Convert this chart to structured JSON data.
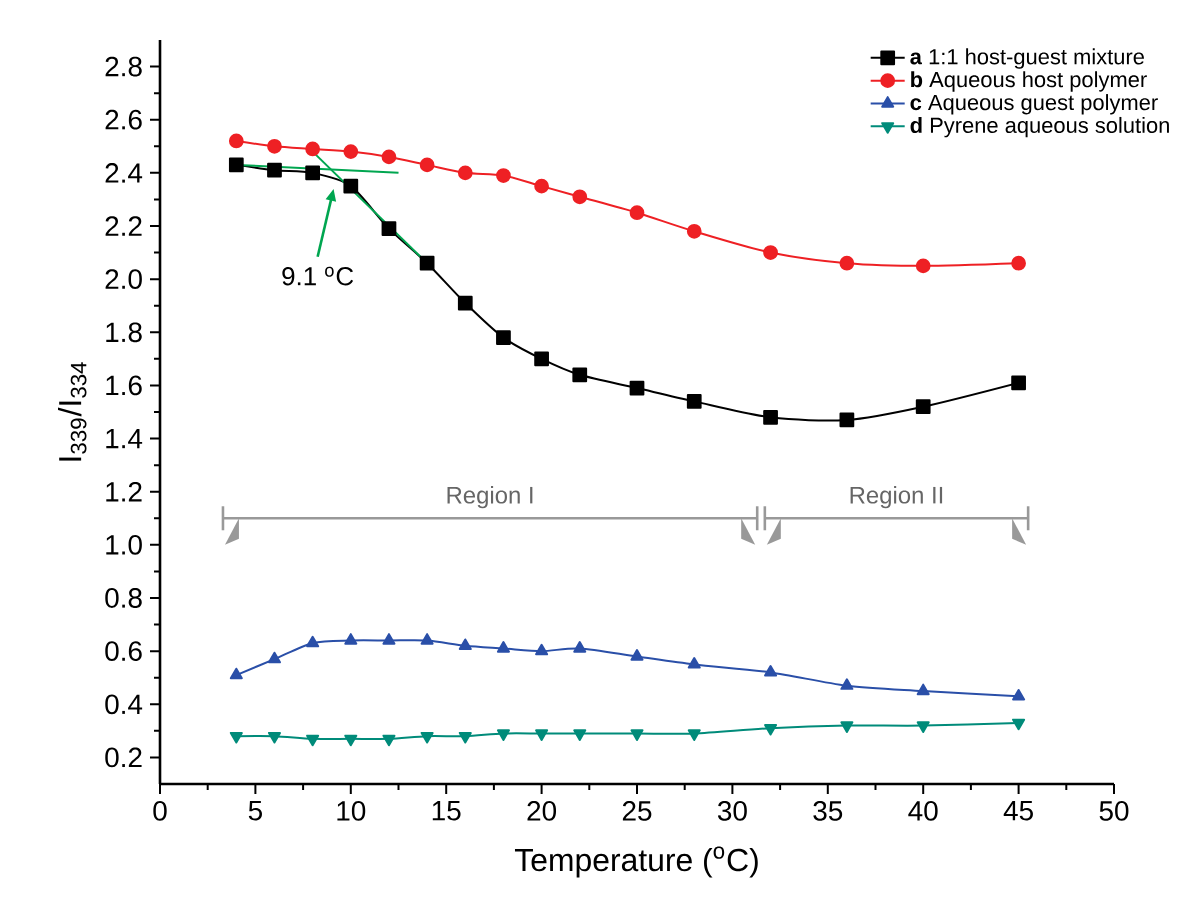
{
  "chart_data": {
    "type": "line",
    "xlabel": "Temperature ($^{o}$C)",
    "ylabel": "I$_{339}$/I$_{334}$",
    "xlim": [
      0,
      50
    ],
    "xticks": [
      0,
      5,
      10,
      15,
      20,
      25,
      30,
      35,
      40,
      45,
      50
    ],
    "ylim": [
      0.1,
      2.9
    ],
    "yticks": [
      0.2,
      0.4,
      0.6,
      0.8,
      {
        "value": 1,
        "label": "1.0"
      },
      1.2,
      1.4,
      1.6,
      1.8,
      {
        "value": 2,
        "label": "2.0"
      },
      2.2,
      2.4,
      2.6,
      2.8
    ],
    "x": [
      4,
      6,
      8,
      10,
      12,
      14,
      16,
      18,
      20,
      22,
      25,
      28,
      32,
      36,
      40,
      45
    ],
    "legend": "top right",
    "series": [
      {
        "name": "**a**  1:1 host-guest mixture",
        "color": "#000000",
        "marker": "square",
        "values": [
          2.43,
          2.41,
          2.4,
          2.35,
          2.19,
          2.06,
          1.91,
          1.78,
          1.7,
          1.64,
          1.59,
          1.54,
          1.48,
          1.47,
          1.52,
          1.61
        ]
      },
      {
        "name": "**b**  Aqueous host polymer",
        "color": "#ee2024",
        "marker": "circle",
        "values": [
          2.52,
          2.5,
          2.49,
          2.48,
          2.46,
          2.43,
          2.4,
          2.39,
          2.35,
          2.31,
          2.25,
          2.18,
          2.1,
          2.06,
          2.05,
          2.06
        ]
      },
      {
        "name": "**c**  Aqueous guest polymer",
        "color": "#2a4fa8",
        "marker": "triangle",
        "values": [
          0.51,
          0.57,
          0.63,
          0.64,
          0.64,
          0.64,
          0.62,
          0.61,
          0.6,
          0.61,
          0.58,
          0.55,
          0.52,
          0.47,
          0.45,
          0.43
        ]
      },
      {
        "name": "**d**  Pyrene aqueous solution",
        "color": "#008b7a",
        "marker": "triangle-down",
        "values": [
          0.28,
          0.28,
          0.27,
          0.27,
          0.27,
          0.28,
          0.28,
          0.29,
          0.29,
          0.29,
          0.29,
          0.29,
          0.31,
          0.32,
          0.32,
          0.33
        ]
      },
      {
        "type": "line",
        "color": "#00a650",
        "marker": "none",
        "x": [
          4,
          12.5
        ],
        "values": [
          2.43,
          2.4
        ]
      },
      {
        "type": "line",
        "color": "#00a650",
        "marker": "none",
        "x": [
          8,
          14
        ],
        "values": [
          2.48,
          2.06
        ]
      },
      {
        "type": "line",
        "name": "Region I",
        "color": "#999999",
        "marker": "none",
        "x": [
          3.3,
          31.3
        ],
        "values": [
          1.1,
          1.1
        ]
      },
      {
        "type": "line",
        "name": "Region II",
        "color": "#999999",
        "marker": "none",
        "x": [
          31.7,
          45.5
        ],
        "values": [
          1.1,
          1.1
        ]
      }
    ],
    "annotations": [
      {
        "text": "9.1 $^{o}$C",
        "x": 9.1,
        "y": 2.34
      }
    ]
  }
}
